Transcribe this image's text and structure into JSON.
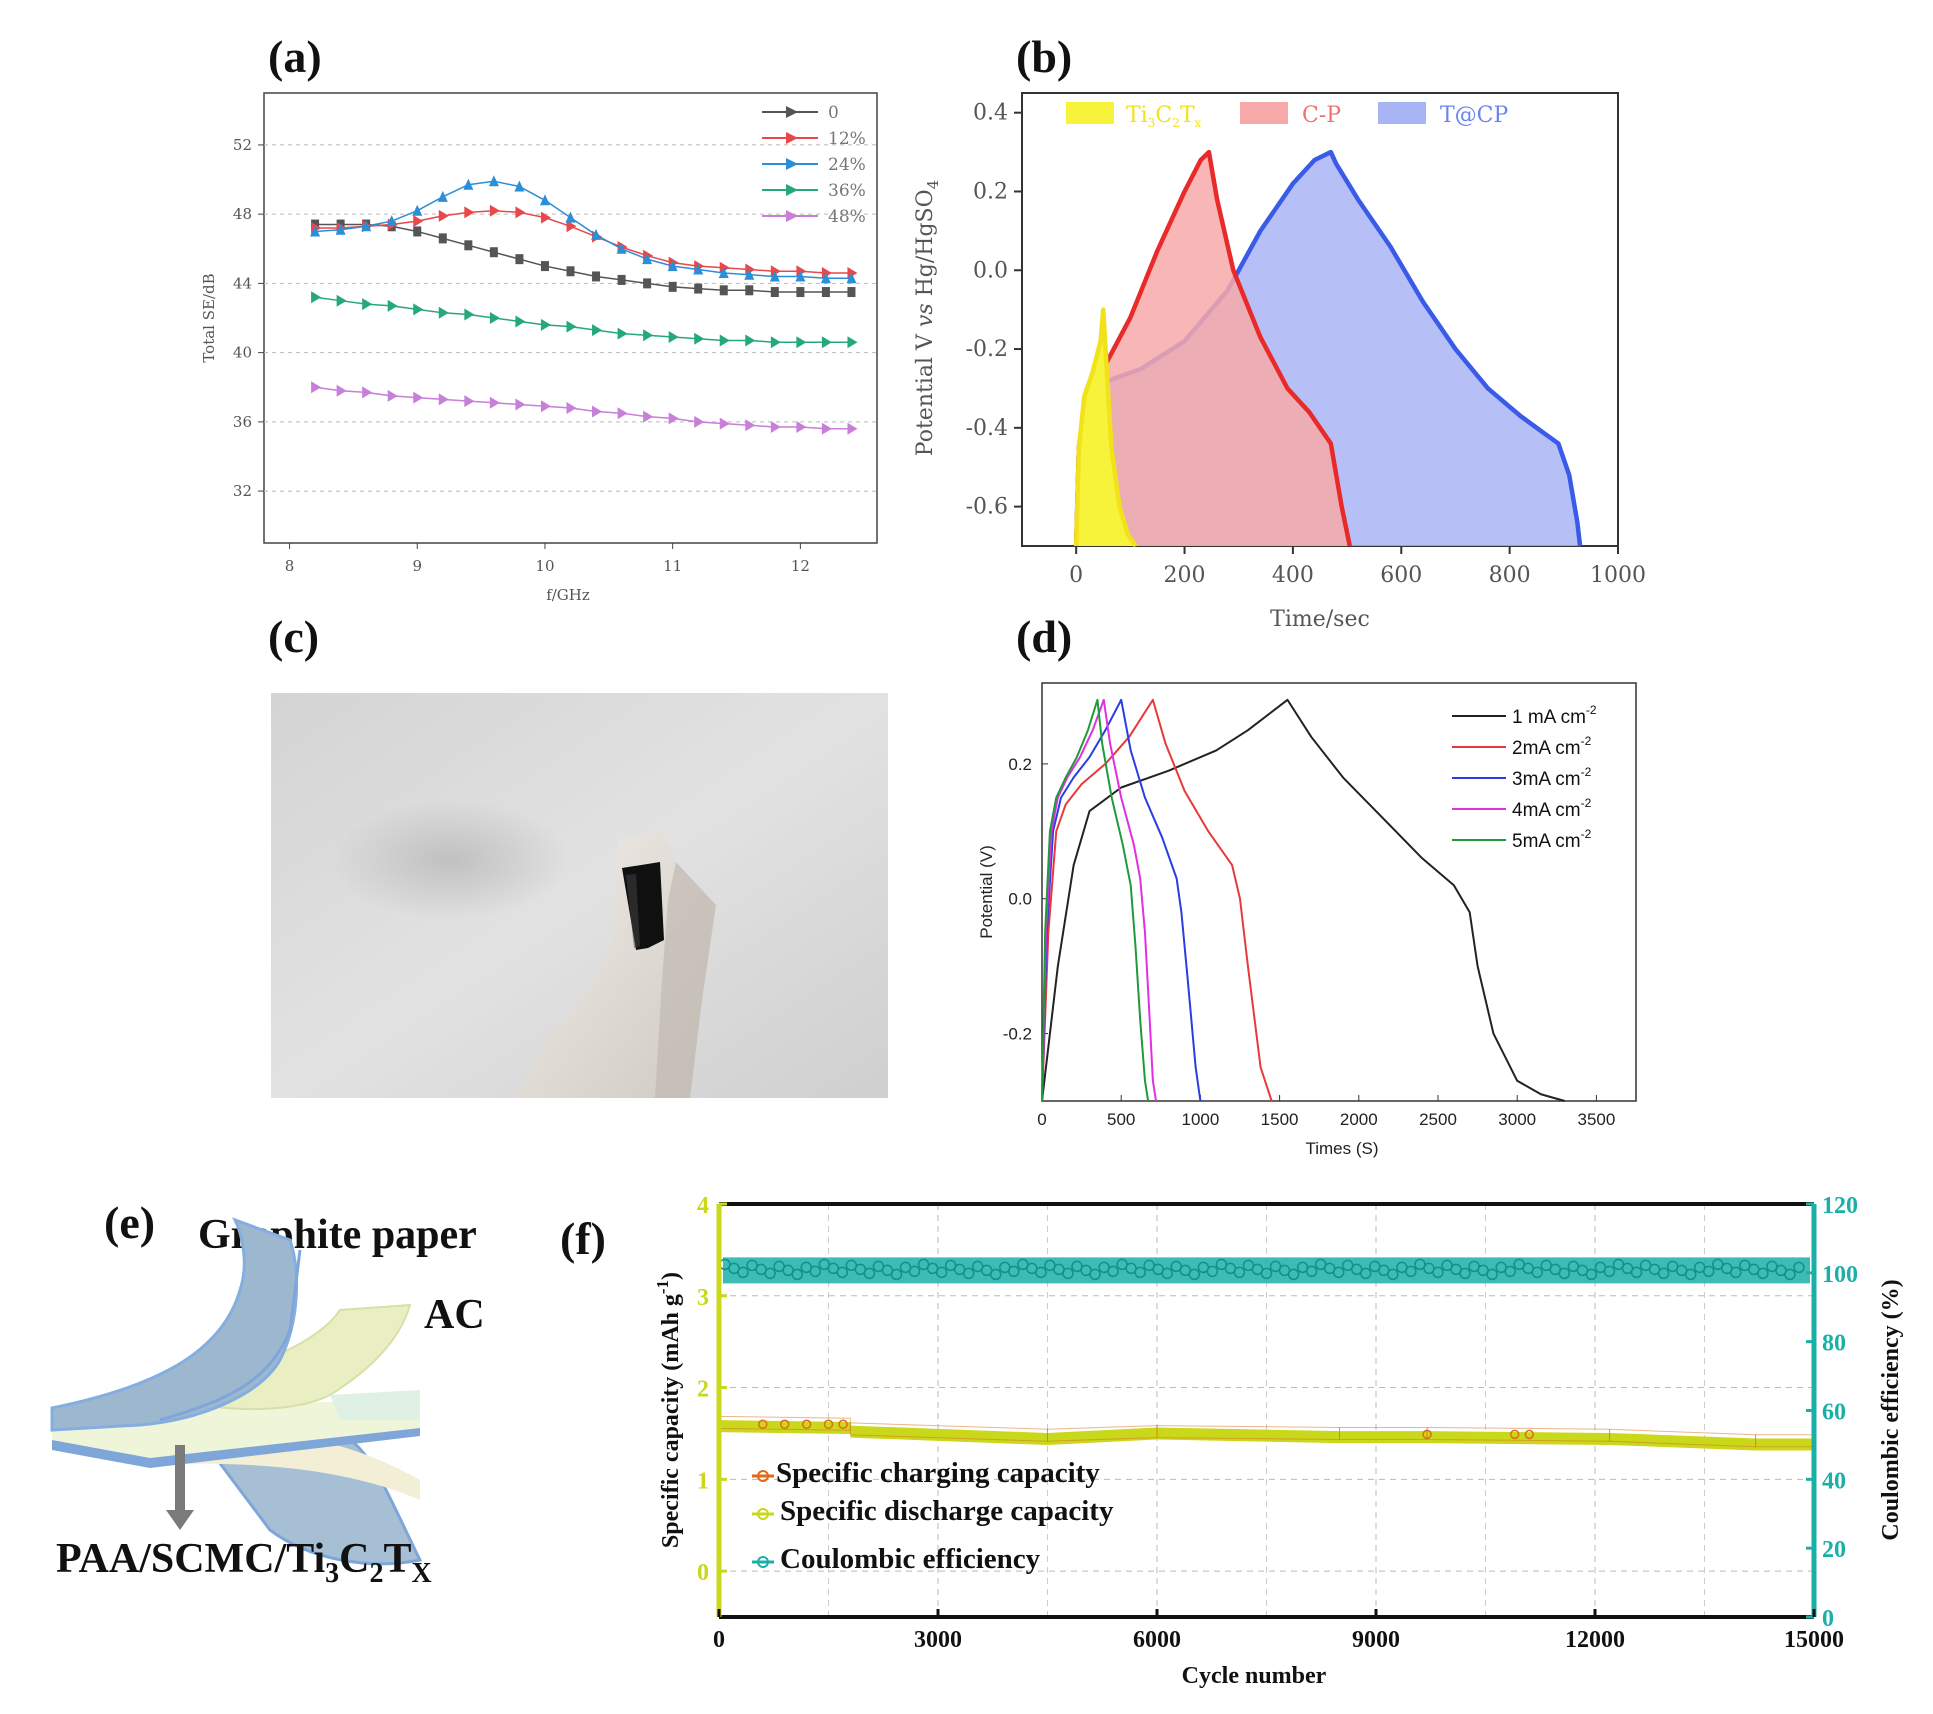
{
  "panels": {
    "a": "(a)",
    "b": "(b)",
    "c": "(c)",
    "d": "(d)",
    "e": "(e)",
    "f": "(f)"
  },
  "colors": {
    "a_series": [
      "#555555",
      "#e8474b",
      "#2a8ed8",
      "#26a87e",
      "#c77fd8"
    ],
    "b_fill": [
      "#f7f23a",
      "#f7a9a9",
      "#a9b4f4"
    ],
    "b_line": [
      "#f2e21a",
      "#e82a2a",
      "#3a5ae8"
    ],
    "d_series": [
      "#222222",
      "#e8393a",
      "#2a3ee0",
      "#e030e0",
      "#1f9a3a"
    ],
    "f_charge": "#e06a1a",
    "f_discharge": "#c9d81a",
    "f_ce": "#1ab0a8"
  },
  "panel_e": {
    "graphite_label": "Graphite paper",
    "ac_label": "AC",
    "paa_prefix": "PAA/SCMC/Ti",
    "paa_sub1": "3",
    "paa_mid": "C",
    "paa_sub2": "2",
    "paa_mid2": "T",
    "paa_sub3": "X"
  },
  "chart_data": [
    {
      "panel": "a",
      "type": "line",
      "xlabel": "f/GHz",
      "ylabel": "Total SE/dB",
      "xlim": [
        7.8,
        12.6
      ],
      "ylim": [
        29,
        55
      ],
      "xticks": [
        "8",
        "9",
        "10",
        "11",
        "12"
      ],
      "yticks": [
        "32",
        "36",
        "40",
        "44",
        "48",
        "52"
      ],
      "grid": "horizontal dashed",
      "legend": "top-right",
      "x": [
        8.2,
        8.4,
        8.6,
        8.8,
        9.0,
        9.2,
        9.4,
        9.6,
        9.8,
        10.0,
        10.2,
        10.4,
        10.6,
        10.8,
        11.0,
        11.2,
        11.4,
        11.6,
        11.8,
        12.0,
        12.2,
        12.4
      ],
      "series": [
        {
          "name": "0",
          "values": [
            47.4,
            47.4,
            47.4,
            47.3,
            47.0,
            46.6,
            46.2,
            45.8,
            45.4,
            45.0,
            44.7,
            44.4,
            44.2,
            44.0,
            43.8,
            43.7,
            43.6,
            43.6,
            43.5,
            43.5,
            43.5,
            43.5
          ]
        },
        {
          "name": "12%",
          "values": [
            47.2,
            47.2,
            47.3,
            47.4,
            47.6,
            47.9,
            48.1,
            48.2,
            48.1,
            47.8,
            47.3,
            46.7,
            46.1,
            45.6,
            45.2,
            45.0,
            44.9,
            44.8,
            44.7,
            44.7,
            44.6,
            44.6
          ]
        },
        {
          "name": "24%",
          "values": [
            47.0,
            47.1,
            47.3,
            47.6,
            48.2,
            49.0,
            49.7,
            49.9,
            49.6,
            48.8,
            47.8,
            46.8,
            46.0,
            45.4,
            45.0,
            44.8,
            44.6,
            44.5,
            44.4,
            44.4,
            44.3,
            44.3
          ]
        },
        {
          "name": "36%",
          "values": [
            43.2,
            43.0,
            42.8,
            42.7,
            42.5,
            42.3,
            42.2,
            42.0,
            41.8,
            41.6,
            41.5,
            41.3,
            41.1,
            41.0,
            40.9,
            40.8,
            40.7,
            40.7,
            40.6,
            40.6,
            40.6,
            40.6
          ]
        },
        {
          "name": "48%",
          "values": [
            38.0,
            37.8,
            37.7,
            37.5,
            37.4,
            37.3,
            37.2,
            37.1,
            37.0,
            36.9,
            36.8,
            36.6,
            36.5,
            36.3,
            36.2,
            36.0,
            35.9,
            35.8,
            35.7,
            35.7,
            35.6,
            35.6
          ]
        }
      ]
    },
    {
      "panel": "b",
      "type": "area",
      "xlabel": "Time/sec",
      "ylabel_parts": [
        "Potential V ",
        "vs",
        " Hg/HgSO",
        "4"
      ],
      "xlim": [
        -100,
        1000
      ],
      "ylim": [
        -0.7,
        0.45
      ],
      "xticks": [
        "0",
        "200",
        "400",
        "600",
        "800",
        "1000"
      ],
      "yticks": [
        "0.4",
        "0.2",
        "0.0",
        "-0.2",
        "-0.4",
        "-0.6"
      ],
      "legend": "top",
      "legend_entries": [
        {
          "name_parts": [
            "Ti",
            "3",
            "C",
            "2",
            "T",
            "x"
          ]
        },
        {
          "name": "C-P"
        },
        {
          "name": "T@CP"
        }
      ],
      "series": [
        {
          "name": "Ti3C2Tx",
          "x": [
            0,
            5,
            15,
            30,
            45,
            50,
            55,
            65,
            80,
            95,
            110
          ],
          "y": [
            -0.7,
            -0.45,
            -0.32,
            -0.26,
            -0.18,
            -0.1,
            -0.22,
            -0.45,
            -0.6,
            -0.67,
            -0.7
          ]
        },
        {
          "name": "C-P",
          "x": [
            0,
            5,
            20,
            50,
            100,
            150,
            200,
            230,
            245,
            260,
            290,
            340,
            390,
            430,
            470,
            490,
            505
          ],
          "y": [
            -0.7,
            -0.45,
            -0.3,
            -0.25,
            -0.12,
            0.05,
            0.2,
            0.28,
            0.3,
            0.18,
            0.0,
            -0.17,
            -0.3,
            -0.36,
            -0.44,
            -0.6,
            -0.7
          ]
        },
        {
          "name": "T@CP",
          "x": [
            0,
            5,
            20,
            60,
            120,
            200,
            280,
            340,
            400,
            440,
            470,
            480,
            520,
            580,
            640,
            700,
            760,
            820,
            860,
            890,
            910,
            925,
            930
          ],
          "y": [
            -0.7,
            -0.45,
            -0.3,
            -0.28,
            -0.25,
            -0.18,
            -0.05,
            0.1,
            0.22,
            0.28,
            0.3,
            0.27,
            0.18,
            0.06,
            -0.08,
            -0.2,
            -0.3,
            -0.37,
            -0.41,
            -0.44,
            -0.52,
            -0.64,
            -0.7
          ]
        }
      ]
    },
    {
      "panel": "d",
      "type": "line",
      "xlabel": "Times (S)",
      "ylabel": "Potential (V)",
      "xlim": [
        0,
        3750
      ],
      "ylim": [
        -0.3,
        0.32
      ],
      "xticks": [
        "0",
        "500",
        "1000",
        "1500",
        "2000",
        "2500",
        "3000",
        "3500"
      ],
      "yticks": [
        "0.2",
        "0.0",
        "-0.2"
      ],
      "legend": "top-right",
      "legend_entries": [
        {
          "name": "1 mA cm",
          "sup": "-2"
        },
        {
          "name": "2mA cm",
          "sup": "-2"
        },
        {
          "name": "3mA cm",
          "sup": "-2"
        },
        {
          "name": "4mA cm",
          "sup": "-2"
        },
        {
          "name": "5mA cm",
          "sup": "-2"
        }
      ],
      "series": [
        {
          "name": "1 mA cm-2",
          "x": [
            0,
            100,
            200,
            300,
            500,
            800,
            1100,
            1300,
            1550,
            1700,
            1900,
            2150,
            2400,
            2600,
            2700,
            2750,
            2850,
            3000,
            3150,
            3300
          ],
          "y": [
            -0.3,
            -0.1,
            0.05,
            0.13,
            0.165,
            0.19,
            0.22,
            0.25,
            0.295,
            0.24,
            0.18,
            0.12,
            0.06,
            0.02,
            -0.02,
            -0.1,
            -0.2,
            -0.27,
            -0.29,
            -0.3
          ]
        },
        {
          "name": "2mA cm-2",
          "x": [
            0,
            40,
            90,
            150,
            250,
            400,
            550,
            700,
            780,
            900,
            1050,
            1200,
            1250,
            1300,
            1380,
            1450
          ],
          "y": [
            -0.3,
            -0.05,
            0.1,
            0.14,
            0.17,
            0.2,
            0.24,
            0.295,
            0.23,
            0.16,
            0.1,
            0.05,
            0.0,
            -0.1,
            -0.25,
            -0.3
          ]
        },
        {
          "name": "3mA cm-2",
          "x": [
            0,
            30,
            70,
            120,
            200,
            300,
            400,
            500,
            560,
            650,
            760,
            850,
            880,
            920,
            970,
            1000
          ],
          "y": [
            -0.3,
            -0.05,
            0.1,
            0.15,
            0.18,
            0.21,
            0.25,
            0.295,
            0.22,
            0.15,
            0.09,
            0.03,
            -0.02,
            -0.12,
            -0.25,
            -0.3
          ]
        },
        {
          "name": "4mA cm-2",
          "x": [
            0,
            25,
            60,
            100,
            160,
            240,
            320,
            390,
            430,
            500,
            580,
            620,
            650,
            680,
            700,
            720
          ],
          "y": [
            -0.3,
            -0.05,
            0.1,
            0.15,
            0.18,
            0.21,
            0.25,
            0.295,
            0.23,
            0.15,
            0.08,
            0.03,
            -0.05,
            -0.18,
            -0.27,
            -0.3
          ]
        },
        {
          "name": "5mA cm-2",
          "x": [
            0,
            20,
            50,
            90,
            150,
            220,
            290,
            350,
            380,
            440,
            510,
            560,
            590,
            620,
            650,
            670
          ],
          "y": [
            -0.3,
            -0.05,
            0.1,
            0.15,
            0.18,
            0.21,
            0.25,
            0.295,
            0.23,
            0.15,
            0.08,
            0.02,
            -0.07,
            -0.18,
            -0.27,
            -0.3
          ]
        }
      ]
    },
    {
      "panel": "f",
      "type": "scatter",
      "xlabel": "Cycle number",
      "ylabel": "Specific capacity (mAh g",
      "ylabel_sup": "-1",
      "ylabel_end": ")",
      "y2label": "Coulombic efficiency (%)",
      "xlim": [
        0,
        15000
      ],
      "ylim": [
        -0.5,
        4
      ],
      "y2lim": [
        0,
        120
      ],
      "xticks": [
        "0",
        "3000",
        "6000",
        "9000",
        "12000",
        "15000"
      ],
      "yticks": [
        "0",
        "1",
        "2",
        "3",
        "4"
      ],
      "y2ticks": [
        "0",
        "20",
        "40",
        "60",
        "80",
        "100",
        "120"
      ],
      "grid": "dashed",
      "legend": "bottom-left",
      "series": [
        {
          "name": "Specific charging capacity",
          "axis": "left",
          "x": [
            0,
            1800,
            1800,
            4500,
            6000,
            8500,
            9700,
            12200,
            14200,
            15000
          ],
          "values": [
            1.62,
            1.6,
            1.55,
            1.48,
            1.52,
            1.5,
            1.5,
            1.48,
            1.42,
            1.42
          ]
        },
        {
          "name": "Specific discharge capacity",
          "axis": "left",
          "x": [
            0,
            1800,
            1800,
            4500,
            6000,
            8500,
            9700,
            12200,
            14200,
            15000
          ],
          "values": [
            1.58,
            1.56,
            1.52,
            1.44,
            1.5,
            1.46,
            1.46,
            1.44,
            1.38,
            1.38
          ]
        },
        {
          "name": "Coulombic efficiency",
          "axis": "right",
          "x": [
            0,
            15000
          ],
          "values": [
            101,
            100
          ]
        }
      ]
    }
  ]
}
